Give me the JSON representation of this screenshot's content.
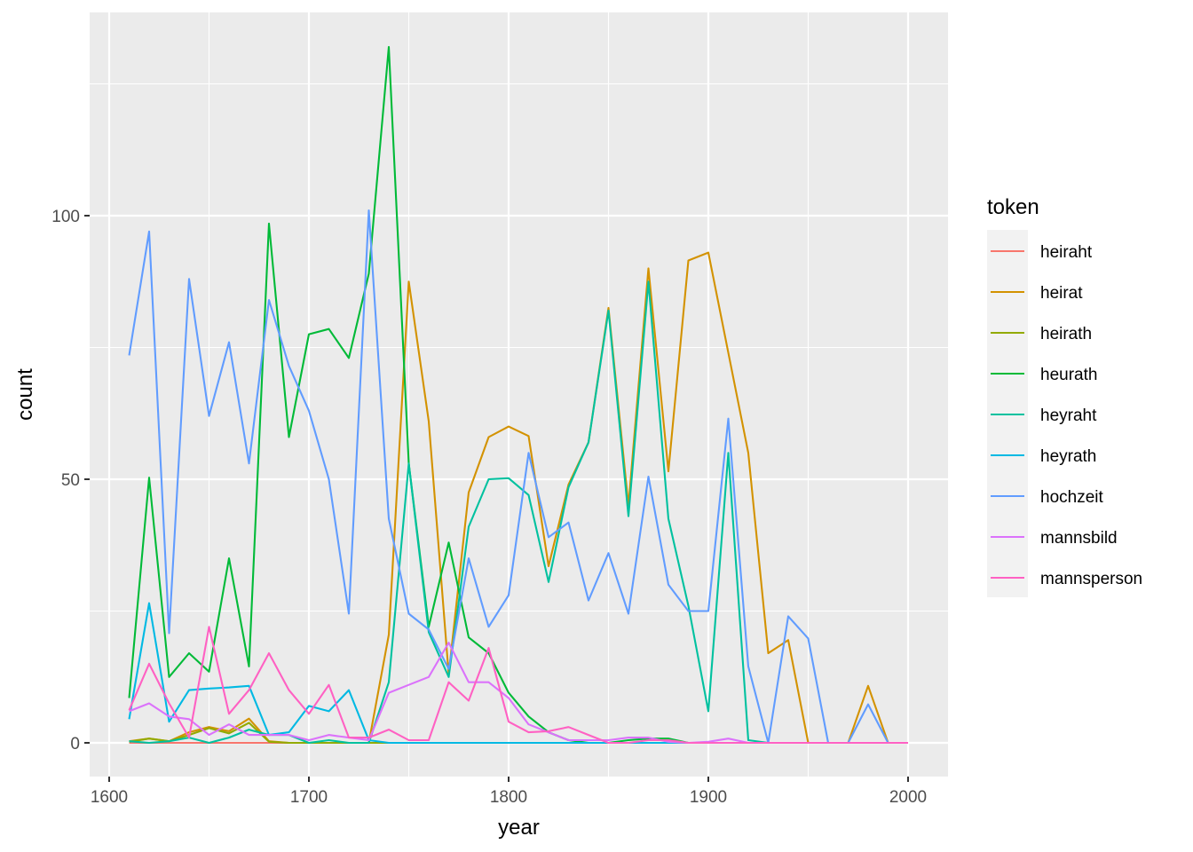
{
  "chart_data": {
    "type": "line",
    "xlabel": "year",
    "ylabel": "count",
    "xlim": [
      1600,
      2000
    ],
    "ylim": [
      -6,
      134
    ],
    "x_ticks": [
      1600,
      1700,
      1800,
      1900,
      2000
    ],
    "y_ticks": [
      0,
      50,
      100
    ],
    "grid": true,
    "legend": {
      "title": "token",
      "position": "right"
    },
    "x": [
      1610,
      1620,
      1630,
      1640,
      1650,
      1660,
      1670,
      1680,
      1690,
      1700,
      1710,
      1720,
      1730,
      1740,
      1750,
      1760,
      1770,
      1780,
      1790,
      1800,
      1810,
      1820,
      1830,
      1840,
      1850,
      1860,
      1870,
      1880,
      1890,
      1900,
      1910,
      1920,
      1930,
      1940,
      1950,
      1960,
      1970,
      1980,
      1990,
      2000
    ],
    "series": [
      {
        "name": "heiraht",
        "color": "#F8766D",
        "values": [
          0,
          0,
          0,
          0,
          0,
          0,
          0,
          0,
          0,
          0,
          0,
          0,
          0,
          0,
          0,
          0,
          0,
          0,
          0,
          0,
          0,
          0,
          0,
          0,
          0,
          0,
          0,
          0,
          0,
          0,
          0,
          0,
          0,
          0,
          0,
          0,
          0,
          0,
          0,
          0
        ]
      },
      {
        "name": "heirat",
        "color": "#D39200",
        "values": [
          0.3,
          0.8,
          0.3,
          2.0,
          3.0,
          2.2,
          4.6,
          0.3,
          0,
          0,
          0,
          0,
          0,
          20.5,
          87.5,
          61,
          13,
          47.5,
          58,
          60,
          58.2,
          33.5,
          49,
          57,
          82.5,
          45,
          90,
          51.5,
          91.5,
          93,
          74,
          55,
          17,
          19.5,
          0,
          0,
          0,
          10.8,
          0,
          0
        ]
      },
      {
        "name": "heirath",
        "color": "#93AA00",
        "values": [
          0.2,
          0.8,
          0.3,
          1.5,
          2.8,
          1.8,
          3.8,
          0.2,
          0,
          0,
          0,
          0,
          0,
          0,
          0,
          0,
          0,
          0,
          0,
          0,
          0,
          0,
          0,
          0,
          0,
          0,
          0,
          0,
          0,
          0,
          0,
          0,
          0,
          0,
          0,
          0,
          0,
          0,
          0,
          0
        ]
      },
      {
        "name": "heurath",
        "color": "#00BA38",
        "values": [
          8.5,
          50.3,
          12.5,
          17,
          13.5,
          35,
          14.5,
          98.5,
          58,
          77.5,
          78.5,
          73,
          89,
          132,
          53,
          22,
          38,
          20,
          17,
          9.5,
          5,
          2,
          0.5,
          0,
          0,
          0.5,
          0.8,
          0.8,
          0,
          0,
          0,
          0,
          0,
          0,
          0,
          0,
          0,
          0,
          0,
          0
        ]
      },
      {
        "name": "heyraht",
        "color": "#00C19F",
        "values": [
          0.3,
          0,
          0.3,
          1,
          0,
          1,
          2.5,
          1.5,
          1.5,
          0,
          0.5,
          0,
          0,
          11.5,
          53,
          21,
          12.5,
          41,
          50,
          50.2,
          47,
          30.5,
          48.5,
          57,
          82,
          43,
          87.5,
          42.5,
          26,
          6,
          55,
          0.5,
          0,
          0,
          0,
          0,
          0,
          0,
          0,
          0
        ]
      },
      {
        "name": "heyrath",
        "color": "#00B9E3",
        "values": [
          4.5,
          26.5,
          4,
          10,
          10.3,
          10.5,
          10.8,
          1.5,
          2,
          7,
          6,
          10,
          0.5,
          0,
          0,
          0,
          0,
          0,
          0,
          0,
          0,
          0,
          0,
          0,
          0,
          0,
          0,
          0,
          0,
          0,
          0,
          0,
          0,
          0,
          0,
          0,
          0,
          0,
          0,
          0
        ]
      },
      {
        "name": "hochzeit",
        "color": "#619CFF",
        "values": [
          73.5,
          97,
          20.8,
          88,
          62,
          76,
          53,
          84,
          71.5,
          63,
          50,
          24.5,
          101,
          42.5,
          24.5,
          21.5,
          14,
          35,
          22,
          28,
          55,
          39,
          41.8,
          27,
          36,
          24.5,
          50.5,
          30,
          25,
          25,
          61.5,
          14.5,
          0,
          24,
          19.8,
          0,
          0,
          7.3,
          0,
          0
        ]
      },
      {
        "name": "mannsbild",
        "color": "#DB72FB",
        "values": [
          6,
          7.5,
          5,
          4.5,
          1.5,
          3.5,
          1.5,
          1.5,
          1.5,
          0.5,
          1.5,
          1,
          0.5,
          9.5,
          11,
          12.5,
          19,
          11.5,
          11.5,
          8.5,
          3.5,
          2,
          0.5,
          0.5,
          0.5,
          1,
          1,
          0.2,
          0,
          0.2,
          0.8,
          0,
          0,
          0,
          0,
          0,
          0,
          0,
          0,
          0
        ]
      },
      {
        "name": "mannsperson",
        "color": "#FF61C3",
        "values": [
          6.2,
          15,
          7.5,
          1,
          22,
          5.5,
          10,
          17,
          10,
          5.5,
          11,
          1,
          1,
          2.5,
          0.5,
          0.5,
          11.5,
          8,
          18,
          4,
          2,
          2.2,
          3,
          1.5,
          0,
          0,
          0.5,
          0.5,
          0,
          0,
          0,
          0,
          0,
          0,
          0,
          0,
          0,
          0,
          0,
          0
        ]
      }
    ]
  }
}
